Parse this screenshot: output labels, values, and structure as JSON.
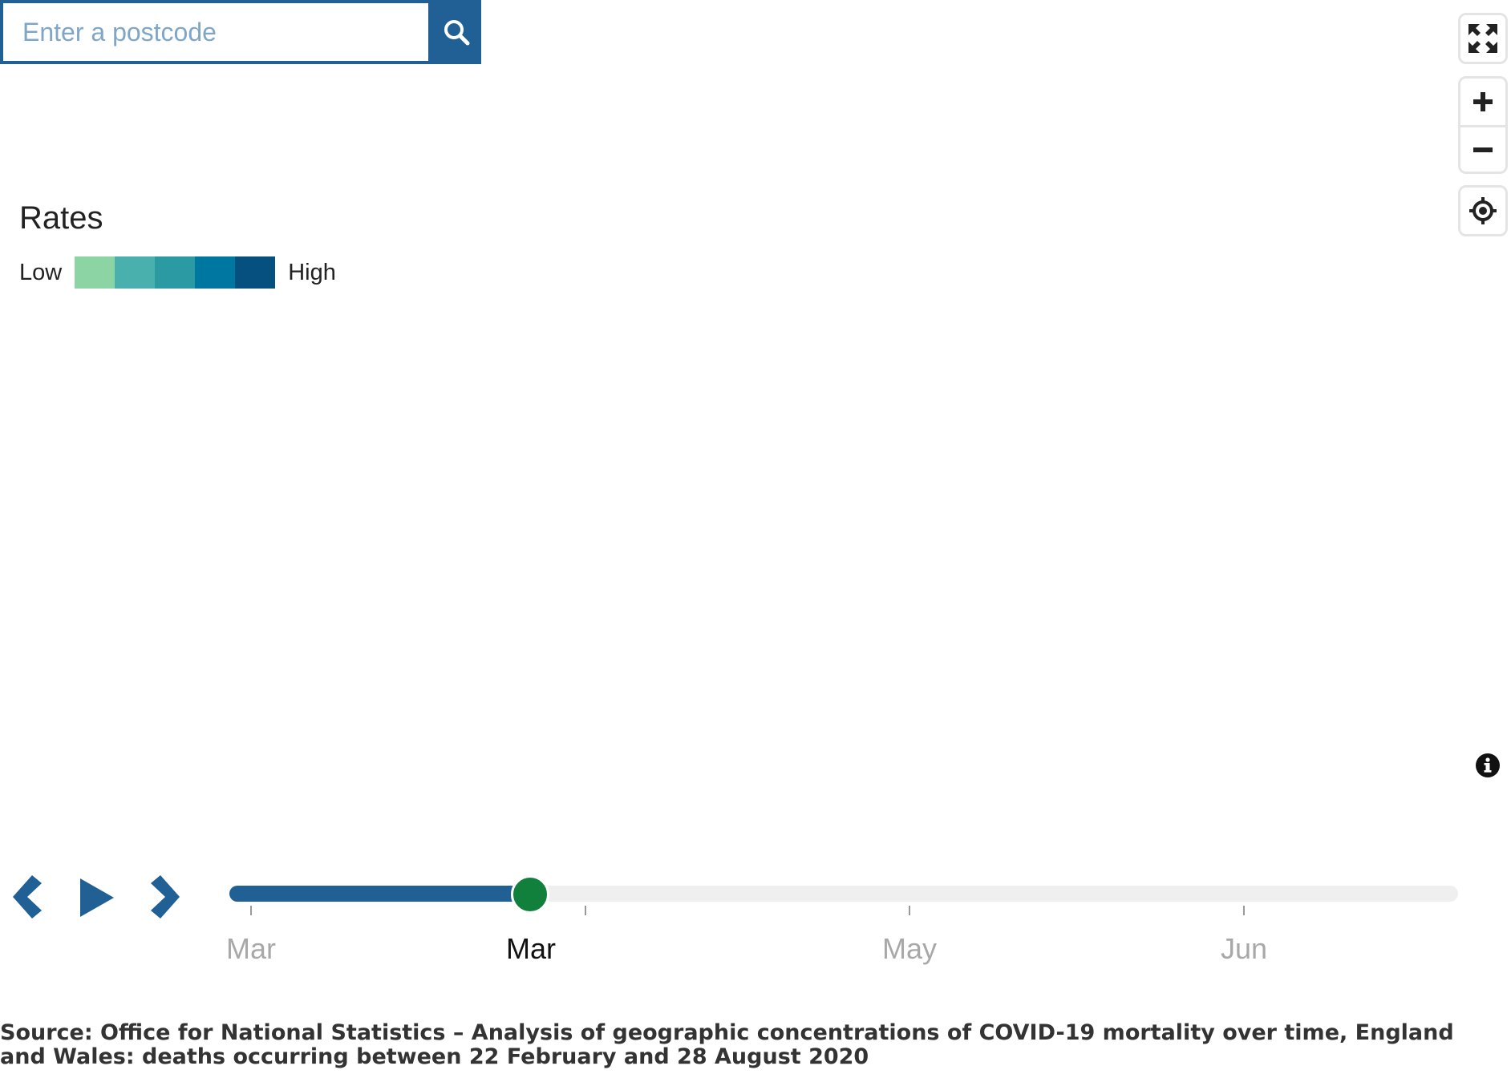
{
  "search": {
    "placeholder": "Enter a postcode",
    "button_icon": "search-icon"
  },
  "map_controls": {
    "fullscreen_icon": "fullscreen-icon",
    "zoom_in_icon": "plus-icon",
    "zoom_out_icon": "minus-icon",
    "geolocate_icon": "locate-icon"
  },
  "legend": {
    "title": "Rates",
    "low_label": "Low",
    "high_label": "High",
    "colors": [
      "#8cd4a4",
      "#4ab0ad",
      "#2c9aa3",
      "#0077a0",
      "#05507f"
    ]
  },
  "info": {
    "icon": "info-icon"
  },
  "player": {
    "prev_icon": "chevron-left-icon",
    "play_icon": "play-icon",
    "next_icon": "chevron-right-icon"
  },
  "timeline": {
    "ticks": [
      {
        "label": "Mar",
        "active": false
      },
      {
        "label": "Mar",
        "active": true
      },
      {
        "label": "May",
        "active": false
      },
      {
        "label": "Jun",
        "active": false
      }
    ],
    "progress": 0.245,
    "accent_color": "#206095",
    "thumb_color": "#10803c"
  },
  "source": {
    "text": "Source: Office for National Statistics – Analysis of geographic concentrations of COVID-19 mortality over time, England and Wales: deaths occurring between 22 February and 28 August 2020"
  }
}
